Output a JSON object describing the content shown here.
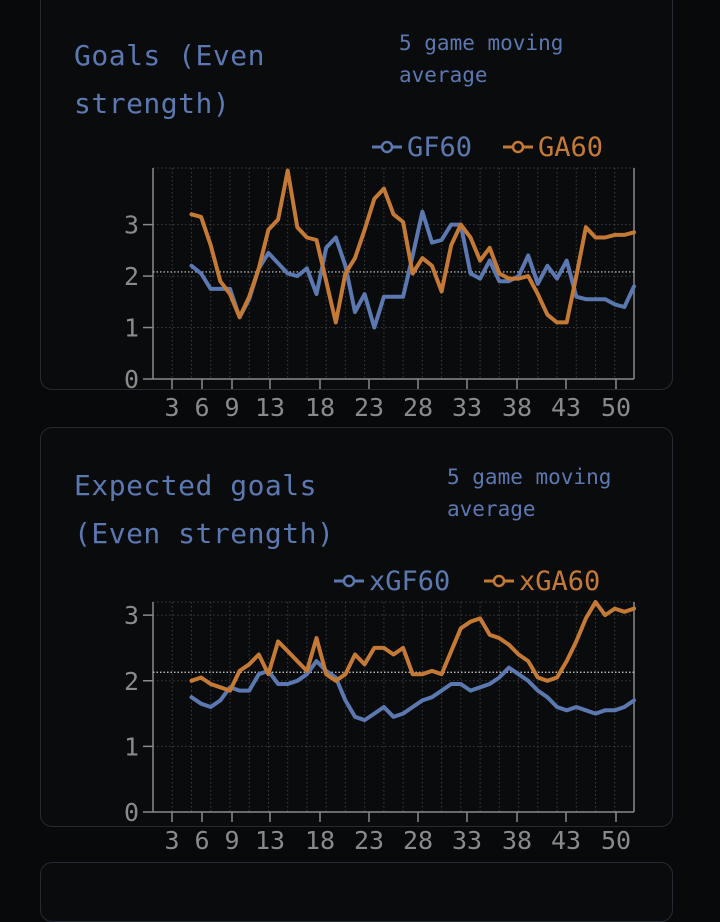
{
  "colors": {
    "gf": "#5b78b0",
    "ga": "#c47a35",
    "axis": "#8a8a8a",
    "grid": "#3a3d44",
    "avg": "#cfcfcf"
  },
  "charts": [
    {
      "title_line1": "Goals (Even",
      "title_line2": "strength)",
      "subtitle_line1": "5 game moving",
      "subtitle_line2": "average"
    },
    {
      "title_line1": "Expected goals",
      "title_line2": "(Even strength)",
      "subtitle_line1": "5 game moving",
      "subtitle_line2": "average"
    }
  ],
  "chart_data": [
    {
      "type": "line",
      "title": "Goals (Even strength)",
      "subtitle": "5 game moving average",
      "x_ticks": [
        "3",
        "6",
        "9",
        "13",
        "18",
        "23",
        "28",
        "33",
        "38",
        "43",
        "50"
      ],
      "y_ticks": [
        "0",
        "1",
        "2",
        "3"
      ],
      "xlim": [
        1,
        51
      ],
      "ylim": [
        0,
        4.1
      ],
      "reference_line": 2.08,
      "grid": true,
      "legend": "top-right",
      "series": [
        {
          "name": "GF60",
          "color": "#5b78b0",
          "x": [
            5,
            6,
            7,
            8,
            9,
            10,
            11,
            12,
            13,
            14,
            15,
            16,
            17,
            18,
            19,
            20,
            21,
            22,
            23,
            24,
            25,
            26,
            27,
            28,
            29,
            30,
            31,
            32,
            33,
            34,
            35,
            36,
            37,
            38,
            39,
            40,
            41,
            42,
            43,
            44,
            45,
            46,
            47,
            48,
            49,
            50,
            51
          ],
          "values": [
            2.2,
            2.05,
            1.75,
            1.75,
            1.75,
            1.2,
            1.55,
            2.15,
            2.45,
            2.25,
            2.05,
            2.0,
            2.15,
            1.65,
            2.55,
            2.75,
            2.2,
            1.3,
            1.65,
            1.0,
            1.6,
            1.6,
            1.6,
            2.4,
            3.25,
            2.65,
            2.7,
            3.0,
            3.0,
            2.05,
            1.95,
            2.3,
            1.9,
            1.9,
            2.0,
            2.4,
            1.85,
            2.2,
            1.95,
            2.3,
            1.6,
            1.55,
            1.55,
            1.55,
            1.45,
            1.4,
            1.8
          ]
        },
        {
          "name": "GA60",
          "color": "#c47a35",
          "x": [
            5,
            6,
            7,
            8,
            9,
            10,
            11,
            12,
            13,
            14,
            15,
            16,
            17,
            18,
            19,
            20,
            21,
            22,
            23,
            24,
            25,
            26,
            27,
            28,
            29,
            30,
            31,
            32,
            33,
            34,
            35,
            36,
            37,
            38,
            39,
            40,
            41,
            42,
            43,
            44,
            45,
            46,
            47,
            48,
            49,
            50,
            51
          ],
          "values": [
            3.2,
            3.15,
            2.6,
            1.9,
            1.65,
            1.2,
            1.6,
            2.15,
            2.9,
            3.1,
            4.05,
            2.95,
            2.75,
            2.7,
            1.9,
            1.1,
            2.05,
            2.35,
            2.9,
            3.5,
            3.7,
            3.2,
            3.05,
            2.05,
            2.35,
            2.2,
            1.7,
            2.6,
            3.0,
            2.75,
            2.3,
            2.55,
            2.05,
            1.95,
            1.95,
            2.0,
            1.65,
            1.25,
            1.1,
            1.1,
            2.0,
            2.95,
            2.75,
            2.75,
            2.8,
            2.8,
            2.85
          ]
        }
      ]
    },
    {
      "type": "line",
      "title": "Expected goals (Even strength)",
      "subtitle": "5 game moving average",
      "x_ticks": [
        "3",
        "6",
        "9",
        "13",
        "18",
        "23",
        "28",
        "33",
        "38",
        "43",
        "50"
      ],
      "y_ticks": [
        "0",
        "1",
        "2",
        "3"
      ],
      "xlim": [
        1,
        51
      ],
      "ylim": [
        0,
        3.2
      ],
      "reference_line": 2.13,
      "grid": true,
      "legend": "top-right",
      "series": [
        {
          "name": "xGF60",
          "color": "#5b78b0",
          "x": [
            5,
            6,
            7,
            8,
            9,
            10,
            11,
            12,
            13,
            14,
            15,
            16,
            17,
            18,
            19,
            20,
            21,
            22,
            23,
            24,
            25,
            26,
            27,
            28,
            29,
            30,
            31,
            32,
            33,
            34,
            35,
            36,
            37,
            38,
            39,
            40,
            41,
            42,
            43,
            44,
            45,
            46,
            47,
            48,
            49,
            50,
            51
          ],
          "values": [
            1.75,
            1.65,
            1.6,
            1.7,
            1.9,
            1.85,
            1.85,
            2.1,
            2.15,
            1.95,
            1.95,
            2.0,
            2.1,
            2.3,
            2.15,
            2.05,
            1.7,
            1.45,
            1.4,
            1.5,
            1.6,
            1.45,
            1.5,
            1.6,
            1.7,
            1.75,
            1.85,
            1.95,
            1.95,
            1.85,
            1.9,
            1.95,
            2.05,
            2.2,
            2.1,
            2.0,
            1.85,
            1.75,
            1.6,
            1.55,
            1.6,
            1.55,
            1.5,
            1.55,
            1.55,
            1.6,
            1.7
          ]
        },
        {
          "name": "xGA60",
          "color": "#c47a35",
          "x": [
            5,
            6,
            7,
            8,
            9,
            10,
            11,
            12,
            13,
            14,
            15,
            16,
            17,
            18,
            19,
            20,
            21,
            22,
            23,
            24,
            25,
            26,
            27,
            28,
            29,
            30,
            31,
            32,
            33,
            34,
            35,
            36,
            37,
            38,
            39,
            40,
            41,
            42,
            43,
            44,
            45,
            46,
            47,
            48,
            49,
            50,
            51
          ],
          "values": [
            2.0,
            2.05,
            1.95,
            1.9,
            1.85,
            2.15,
            2.25,
            2.4,
            2.1,
            2.6,
            2.45,
            2.3,
            2.15,
            2.65,
            2.1,
            2.0,
            2.1,
            2.4,
            2.25,
            2.5,
            2.5,
            2.4,
            2.5,
            2.1,
            2.1,
            2.15,
            2.1,
            2.45,
            2.8,
            2.9,
            2.95,
            2.7,
            2.65,
            2.55,
            2.4,
            2.3,
            2.05,
            2.0,
            2.05,
            2.3,
            2.6,
            2.95,
            3.2,
            3.0,
            3.1,
            3.05,
            3.1
          ]
        }
      ]
    }
  ]
}
